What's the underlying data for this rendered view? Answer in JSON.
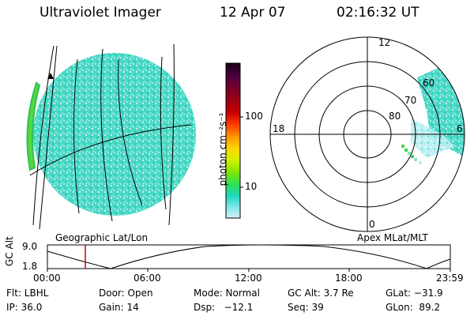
{
  "header": {
    "title": "Ultraviolet Imager",
    "date": "12 Apr 07",
    "time": "02:16:32 UT"
  },
  "colorbar": {
    "label": "photon cm⁻²s⁻¹",
    "ticks": [
      "100",
      "10"
    ],
    "colors": [
      "#1a0010",
      "#4a0040",
      "#8a0020",
      "#c80000",
      "#ff4000",
      "#ff9a00",
      "#ffd400",
      "#d8f000",
      "#86e800",
      "#2ee050",
      "#20d8c0",
      "#80e8e8",
      "#d6f0f8"
    ]
  },
  "left_image": {
    "caption": "Geographic Lat/Lon"
  },
  "polar_plot": {
    "caption": "Apex MLat/MLT",
    "mlt_labels": {
      "top": "12",
      "left": "18",
      "right": "6",
      "bottom": "0"
    },
    "lat_labels": [
      "60",
      "70",
      "80"
    ]
  },
  "altitude_plot": {
    "ylabel": "GC Alt",
    "yticks": [
      "9.0",
      "1.8"
    ],
    "xticks": [
      "00:00",
      "06:00",
      "12:00",
      "18:00",
      "23:59"
    ]
  },
  "footer": {
    "flt": "Flt: LBHL",
    "door": "Door: Open",
    "mode": "Mode: Normal",
    "gc_alt": "GC Alt: 3.7 Re",
    "glat": "GLat: −31.9",
    "ip": "IP: 36.0",
    "gain": "Gain: 14",
    "dsp": "Dsp:   −12.1",
    "seq": "Seq: 39",
    "glon": "GLon:  89.2"
  }
}
